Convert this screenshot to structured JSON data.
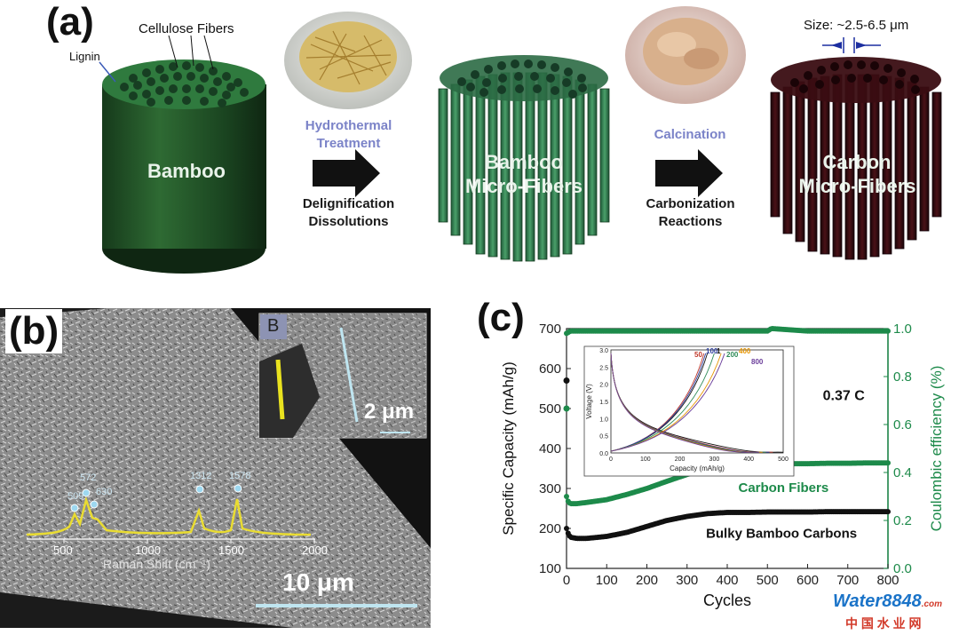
{
  "panel_a": {
    "label": "(a)",
    "cellulose_label": "Cellulose Fibers",
    "lignin_label": "Lignin",
    "size_label": "Size: ~2.5-6.5 μm",
    "cylinders": {
      "bamboo": "Bamboo",
      "microfibers_line1": "Bamboo",
      "microfibers_line2": "Micro-Fibers",
      "carbon_line1": "Carbon",
      "carbon_line2": "Micro-Fibers"
    },
    "step1": {
      "top_line1": "Hydrothermal",
      "top_line2": "Treatment",
      "bottom_line1": "Delignification",
      "bottom_line2": "Dissolutions"
    },
    "step2": {
      "top": "Calcination",
      "bottom_line1": "Carbonization",
      "bottom_line2": "Reactions"
    },
    "colors": {
      "bamboo_green": "#1e4a24",
      "fiber_green": "#3c8a58",
      "carbon": "#3a0d12",
      "arrow": "#111111",
      "step_blue": "#7b83c8"
    }
  },
  "panel_b": {
    "label": "(b)",
    "inset_label": "B",
    "inset_scale": "2 μm",
    "main_scale": "10 μm",
    "raman_xlabel": "Raman Shift (cm⁻¹)",
    "raman_ticks": [
      "500",
      "1000",
      "1500",
      "2000"
    ],
    "peaks": [
      "509",
      "572",
      "630",
      "1312",
      "1578"
    ]
  },
  "panel_c": {
    "label": "(c)",
    "watermark_brand": "Water8848",
    "watermark_com": ".com",
    "watermark_cn": "中 国 水 业 网"
  },
  "chart_data": [
    {
      "type": "scatter",
      "title": "",
      "xlabel": "Cycles",
      "ylabel": "Specific Capacity (mAh/g)",
      "y2label": "Coulombic efficiency (%)",
      "xlim": [
        0,
        800
      ],
      "ylim": [
        100,
        700
      ],
      "y2lim": [
        0,
        1.0
      ],
      "x_ticks": [
        "0",
        "100",
        "200",
        "300",
        "400",
        "500",
        "600",
        "700",
        "800"
      ],
      "y_ticks": [
        "100",
        "200",
        "300",
        "400",
        "500",
        "600",
        "700"
      ],
      "y2_ticks": [
        "0.0",
        "0.2",
        "0.4",
        "0.6",
        "0.8",
        "1.0"
      ],
      "rate_label": "0.37 C",
      "series": [
        {
          "name": "Carbon Fibers",
          "axis": "left",
          "color": "#1d8a4a",
          "x": [
            0,
            5,
            10,
            25,
            50,
            100,
            150,
            200,
            250,
            300,
            350,
            400,
            450,
            500,
            550,
            600,
            650,
            700,
            750,
            800
          ],
          "y": [
            280,
            265,
            262,
            262,
            265,
            272,
            285,
            300,
            318,
            335,
            350,
            358,
            360,
            360,
            362,
            362,
            363,
            363,
            364,
            364
          ]
        },
        {
          "name": "Bulky Bamboo Carbons",
          "axis": "left",
          "color": "#111111",
          "x": [
            0,
            5,
            10,
            25,
            50,
            100,
            150,
            200,
            250,
            300,
            350,
            400,
            450,
            500,
            550,
            600,
            650,
            700,
            750,
            800
          ],
          "y": [
            200,
            185,
            178,
            175,
            175,
            180,
            190,
            205,
            220,
            230,
            237,
            240,
            240,
            241,
            241,
            241,
            242,
            242,
            242,
            242
          ]
        },
        {
          "name": "Carbon Fibers CE",
          "axis": "right",
          "color": "#1d8a4a",
          "x": [
            0,
            10,
            50,
            100,
            200,
            300,
            400,
            500,
            510,
            600,
            700,
            800
          ],
          "y": [
            0.98,
            0.99,
            0.99,
            0.99,
            0.99,
            0.99,
            0.99,
            0.99,
            1.0,
            0.99,
            0.99,
            0.99
          ]
        }
      ],
      "outliers": [
        {
          "x": 0,
          "y": 570,
          "color": "#111111",
          "axis": "left"
        },
        {
          "x": 0,
          "y": 500,
          "color": "#1d8a4a",
          "axis": "left"
        }
      ]
    },
    {
      "type": "line",
      "title": "",
      "xlabel": "Capacity (mAh/g)",
      "ylabel": "Voltage (V)",
      "xlim": [
        0,
        500
      ],
      "ylim": [
        0,
        3.0
      ],
      "x_ticks": [
        "0",
        "100",
        "200",
        "300",
        "400",
        "500"
      ],
      "y_ticks": [
        "0.0",
        "0.5",
        "1.0",
        "1.5",
        "2.0",
        "2.5",
        "3.0"
      ],
      "cycle_labels": [
        {
          "text": "50",
          "color": "#c0392b"
        },
        {
          "text": "100",
          "color": "#2c3e9e"
        },
        {
          "text": "1",
          "color": "#111111"
        },
        {
          "text": "200",
          "color": "#2e8b57"
        },
        {
          "text": "400",
          "color": "#e69500"
        },
        {
          "text": "800",
          "color": "#6a3d9a"
        }
      ],
      "series": [
        {
          "name": "1",
          "color": "#111111",
          "discharge_end": 500,
          "charge_end": 280
        },
        {
          "name": "50",
          "color": "#c0392b",
          "discharge_end": 470,
          "charge_end": 270
        },
        {
          "name": "100",
          "color": "#2c3e9e",
          "discharge_end": 460,
          "charge_end": 275
        },
        {
          "name": "200",
          "color": "#2e8b57",
          "discharge_end": 450,
          "charge_end": 300
        },
        {
          "name": "400",
          "color": "#e69500",
          "discharge_end": 440,
          "charge_end": 320
        },
        {
          "name": "800",
          "color": "#6a3d9a",
          "discharge_end": 430,
          "charge_end": 330
        }
      ]
    }
  ]
}
